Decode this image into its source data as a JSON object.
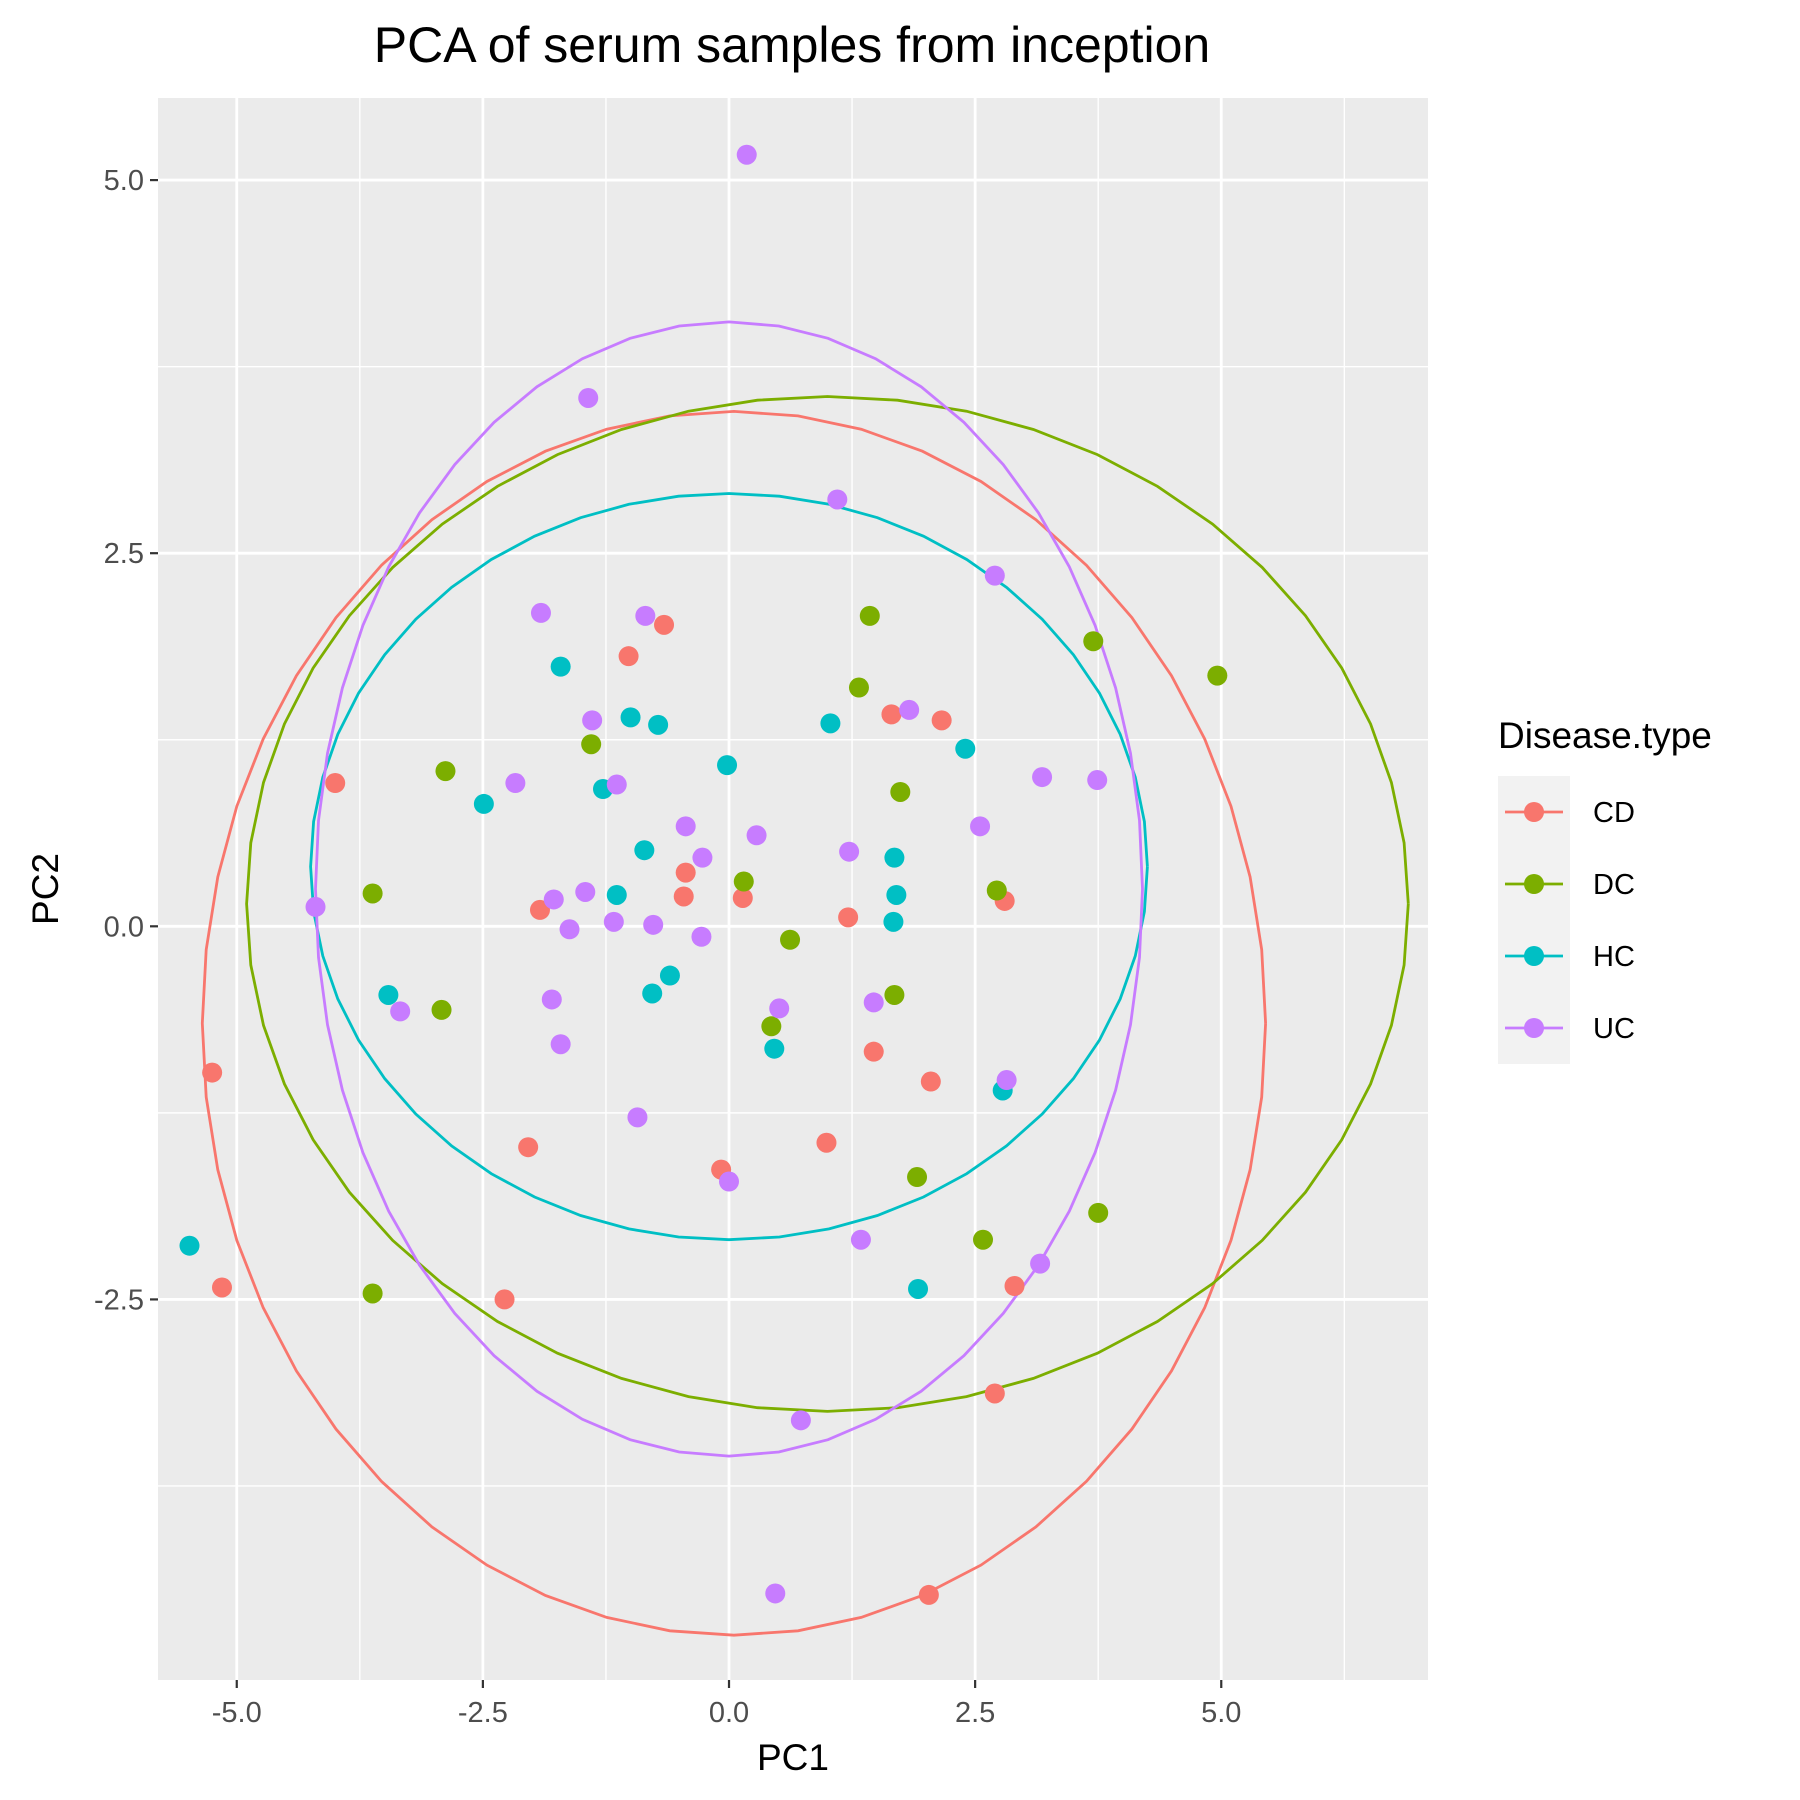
{
  "chart_data": {
    "type": "scatter",
    "title": "PCA of serum samples from inception",
    "xlabel": "PC1",
    "ylabel": "PC2",
    "xlim": [
      -5.8,
      7.1
    ],
    "ylim": [
      -5.05,
      5.55
    ],
    "x_ticks": [
      -5.0,
      -2.5,
      0.0,
      2.5,
      5.0
    ],
    "x_tick_labels": [
      "-5.0",
      "-2.5",
      "0.0",
      "2.5",
      "5.0"
    ],
    "y_ticks": [
      -2.5,
      0.0,
      2.5,
      5.0
    ],
    "y_tick_labels": [
      "-2.5",
      "0.0",
      "2.5",
      "5.0"
    ],
    "grid": true,
    "legend": {
      "title": "Disease.type",
      "position": "right"
    },
    "series": [
      {
        "name": "CD",
        "color": "#F8766D",
        "points": [
          [
            -4.0,
            0.96
          ],
          [
            -5.25,
            -0.98
          ],
          [
            -5.15,
            -2.42
          ],
          [
            -2.28,
            -2.5
          ],
          [
            -2.04,
            -1.48
          ],
          [
            -1.92,
            0.11
          ],
          [
            -1.02,
            1.81
          ],
          [
            -0.66,
            2.02
          ],
          [
            -0.44,
            0.36
          ],
          [
            -0.46,
            0.2
          ],
          [
            0.14,
            0.19
          ],
          [
            -0.08,
            -1.63
          ],
          [
            0.99,
            -1.45
          ],
          [
            1.21,
            0.06
          ],
          [
            1.47,
            -0.84
          ],
          [
            1.65,
            1.42
          ],
          [
            2.16,
            1.38
          ],
          [
            2.05,
            -1.04
          ],
          [
            2.8,
            0.17
          ],
          [
            2.9,
            -2.41
          ],
          [
            2.7,
            -3.13
          ],
          [
            2.03,
            -4.48
          ]
        ],
        "ellipse": {
          "center": [
            0.05,
            -0.65
          ],
          "semi_axes": [
            5.4,
            4.1
          ]
        }
      },
      {
        "name": "DC",
        "color": "#7CAE00",
        "points": [
          [
            -3.62,
            0.22
          ],
          [
            -2.88,
            1.04
          ],
          [
            -2.92,
            -0.56
          ],
          [
            -3.62,
            -2.46
          ],
          [
            -1.4,
            1.22
          ],
          [
            0.15,
            0.3
          ],
          [
            0.43,
            -0.67
          ],
          [
            0.62,
            -0.09
          ],
          [
            1.32,
            1.6
          ],
          [
            1.43,
            2.08
          ],
          [
            1.74,
            0.9
          ],
          [
            1.68,
            -0.46
          ],
          [
            1.91,
            -1.68
          ],
          [
            2.58,
            -2.1
          ],
          [
            2.72,
            0.24
          ],
          [
            3.7,
            1.91
          ],
          [
            3.75,
            -1.92
          ],
          [
            4.96,
            1.68
          ]
        ],
        "ellipse": {
          "center": [
            1.0,
            0.15
          ],
          "semi_axes": [
            5.9,
            3.4
          ]
        }
      },
      {
        "name": "HC",
        "color": "#00BFC4",
        "points": [
          [
            -5.48,
            -2.14
          ],
          [
            -3.46,
            -0.46
          ],
          [
            -2.49,
            0.82
          ],
          [
            -1.71,
            1.74
          ],
          [
            -1.28,
            0.92
          ],
          [
            -1.0,
            1.4
          ],
          [
            -0.72,
            1.35
          ],
          [
            -0.86,
            0.51
          ],
          [
            -1.14,
            0.21
          ],
          [
            -0.78,
            -0.45
          ],
          [
            -0.6,
            -0.33
          ],
          [
            -0.02,
            1.08
          ],
          [
            0.46,
            -0.82
          ],
          [
            1.03,
            1.36
          ],
          [
            1.68,
            0.46
          ],
          [
            1.7,
            0.21
          ],
          [
            1.67,
            0.03
          ],
          [
            2.4,
            1.19
          ],
          [
            2.78,
            -1.1
          ],
          [
            1.92,
            -2.43
          ]
        ],
        "ellipse": {
          "center": [
            0.0,
            0.4
          ],
          "semi_axes": [
            4.25,
            2.5
          ]
        }
      },
      {
        "name": "UC",
        "color": "#C77CFF",
        "points": [
          [
            0.18,
            5.17
          ],
          [
            -1.43,
            3.54
          ],
          [
            1.1,
            2.86
          ],
          [
            2.7,
            2.35
          ],
          [
            -1.91,
            2.1
          ],
          [
            -0.85,
            2.08
          ],
          [
            -1.39,
            1.38
          ],
          [
            1.83,
            1.45
          ],
          [
            -2.17,
            0.96
          ],
          [
            -1.14,
            0.95
          ],
          [
            3.18,
            1.0
          ],
          [
            3.74,
            0.98
          ],
          [
            -0.44,
            0.67
          ],
          [
            0.28,
            0.61
          ],
          [
            2.55,
            0.67
          ],
          [
            -0.27,
            0.46
          ],
          [
            1.22,
            0.5
          ],
          [
            -4.2,
            0.13
          ],
          [
            -1.78,
            0.18
          ],
          [
            -1.46,
            0.23
          ],
          [
            -1.62,
            -0.02
          ],
          [
            -1.17,
            0.03
          ],
          [
            -0.77,
            0.01
          ],
          [
            -0.28,
            -0.07
          ],
          [
            -3.34,
            -0.57
          ],
          [
            -1.8,
            -0.49
          ],
          [
            -1.71,
            -0.79
          ],
          [
            0.51,
            -0.55
          ],
          [
            1.47,
            -0.51
          ],
          [
            -0.93,
            -1.28
          ],
          [
            0.0,
            -1.71
          ],
          [
            2.82,
            -1.03
          ],
          [
            1.34,
            -2.1
          ],
          [
            3.16,
            -2.26
          ],
          [
            0.73,
            -3.31
          ],
          [
            0.47,
            -4.47
          ]
        ],
        "ellipse": {
          "center": [
            0.0,
            0.25
          ],
          "semi_axes": [
            4.2,
            3.8
          ]
        }
      }
    ]
  }
}
